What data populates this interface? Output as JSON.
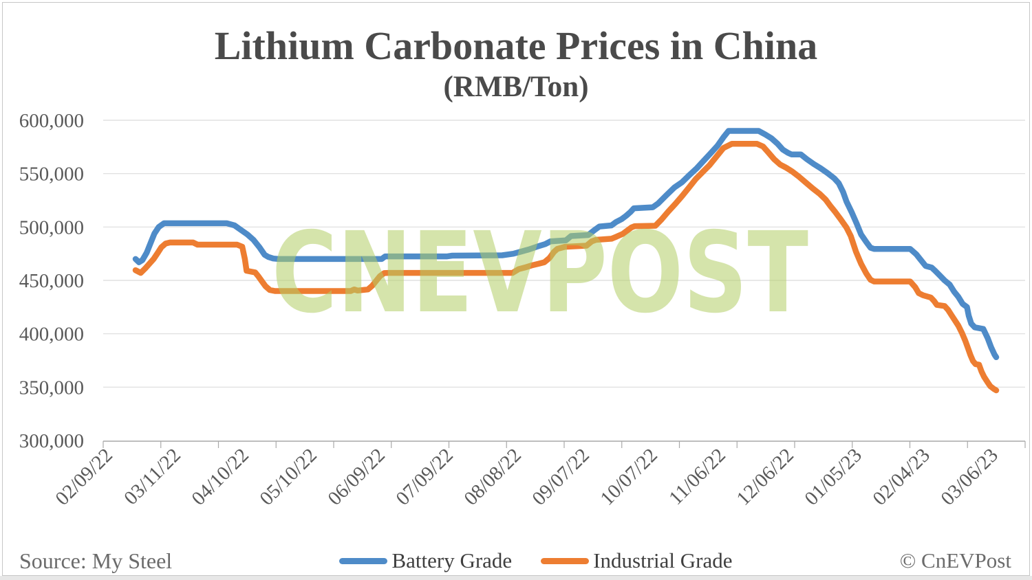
{
  "page": {
    "background": "#FFFFFF",
    "border_color": "#C6C6C6"
  },
  "header": {
    "title": "Lithium Carbonate Prices in China",
    "subtitle": "(RMB/Ton)",
    "title_color": "#4A4A4A"
  },
  "watermark": {
    "text": "CNEVPOST",
    "color": "#B2CE66",
    "opacity": 0.55
  },
  "footer": {
    "source": "Source: My Steel",
    "credit": "© CnEVPost"
  },
  "legend": {
    "items": [
      {
        "label": "Battery Grade",
        "color": "#4E8BC8"
      },
      {
        "label": "Industrial Grade",
        "color": "#ED7D31"
      }
    ]
  },
  "chart_data": {
    "type": "line",
    "title": "Lithium Carbonate Prices in China",
    "unit": "RMB/Ton",
    "grid": "horizontal",
    "legend_position": "bottom",
    "x_domain": [
      "02/09/22",
      "03/06/23"
    ],
    "x_tick_labels": [
      "02/09/22",
      "03/11/22",
      "04/10/22",
      "05/10/22",
      "06/09/22",
      "07/09/22",
      "08/08/22",
      "09/07/22",
      "10/07/22",
      "11/06/22",
      "12/06/22",
      "01/05/23",
      "02/04/23",
      "03/06/23"
    ],
    "y_axis": {
      "min": 300000,
      "max": 600000,
      "tick_step": 50000,
      "tick_labels": [
        "600,000",
        "550,000",
        "500,000",
        "450,000",
        "400,000",
        "350,000",
        "300,000"
      ]
    },
    "series": [
      {
        "name": "Battery Grade",
        "color": "#4E8BC8",
        "points": [
          [
            0,
            470000
          ],
          [
            0.004,
            467000
          ],
          [
            0.008,
            469000
          ],
          [
            0.013,
            476000
          ],
          [
            0.018,
            486000
          ],
          [
            0.022,
            494000
          ],
          [
            0.027,
            500000
          ],
          [
            0.033,
            503500
          ],
          [
            0.106,
            503500
          ],
          [
            0.115,
            501500
          ],
          [
            0.122,
            497500
          ],
          [
            0.13,
            493000
          ],
          [
            0.137,
            488000
          ],
          [
            0.144,
            481000
          ],
          [
            0.15,
            474000
          ],
          [
            0.154,
            472000
          ],
          [
            0.16,
            470500
          ],
          [
            0.166,
            470000
          ],
          [
            0.286,
            470000
          ],
          [
            0.29,
            472500
          ],
          [
            0.362,
            472500
          ],
          [
            0.368,
            473200
          ],
          [
            0.426,
            473500
          ],
          [
            0.439,
            475000
          ],
          [
            0.448,
            477000
          ],
          [
            0.457,
            479000
          ],
          [
            0.466,
            481500
          ],
          [
            0.476,
            484000
          ],
          [
            0.482,
            486500
          ],
          [
            0.5,
            487500
          ],
          [
            0.506,
            491500
          ],
          [
            0.526,
            492500
          ],
          [
            0.533,
            497000
          ],
          [
            0.539,
            500500
          ],
          [
            0.553,
            501500
          ],
          [
            0.558,
            504500
          ],
          [
            0.565,
            507500
          ],
          [
            0.57,
            510500
          ],
          [
            0.575,
            514000
          ],
          [
            0.579,
            517500
          ],
          [
            0.601,
            518500
          ],
          [
            0.607,
            522000
          ],
          [
            0.617,
            530000
          ],
          [
            0.626,
            537000
          ],
          [
            0.635,
            542000
          ],
          [
            0.644,
            549000
          ],
          [
            0.652,
            555000
          ],
          [
            0.66,
            562000
          ],
          [
            0.668,
            569000
          ],
          [
            0.676,
            576000
          ],
          [
            0.683,
            584000
          ],
          [
            0.689,
            590000
          ],
          [
            0.724,
            590000
          ],
          [
            0.731,
            587000
          ],
          [
            0.739,
            583000
          ],
          [
            0.746,
            578000
          ],
          [
            0.752,
            572500
          ],
          [
            0.758,
            569500
          ],
          [
            0.762,
            568000
          ],
          [
            0.773,
            568000
          ],
          [
            0.78,
            563500
          ],
          [
            0.788,
            559000
          ],
          [
            0.796,
            555000
          ],
          [
            0.804,
            550500
          ],
          [
            0.812,
            545500
          ],
          [
            0.817,
            541000
          ],
          [
            0.822,
            533000
          ],
          [
            0.826,
            524000
          ],
          [
            0.832,
            514000
          ],
          [
            0.838,
            503000
          ],
          [
            0.843,
            493000
          ],
          [
            0.849,
            486000
          ],
          [
            0.854,
            480500
          ],
          [
            0.858,
            479500
          ],
          [
            0.9,
            479500
          ],
          [
            0.907,
            474500
          ],
          [
            0.912,
            469500
          ],
          [
            0.918,
            463500
          ],
          [
            0.925,
            462000
          ],
          [
            0.929,
            459000
          ],
          [
            0.934,
            455000
          ],
          [
            0.94,
            450000
          ],
          [
            0.946,
            446000
          ],
          [
            0.951,
            439500
          ],
          [
            0.956,
            434500
          ],
          [
            0.961,
            428000
          ],
          [
            0.966,
            425000
          ],
          [
            0.968,
            417000
          ],
          [
            0.971,
            409500
          ],
          [
            0.975,
            406000
          ],
          [
            0.985,
            404500
          ],
          [
            0.99,
            396000
          ],
          [
            0.994,
            387500
          ],
          [
            0.998,
            380500
          ],
          [
            1,
            378000
          ]
        ]
      },
      {
        "name": "Industrial Grade",
        "color": "#ED7D31",
        "points": [
          [
            0,
            459500
          ],
          [
            0.006,
            457000
          ],
          [
            0.011,
            461000
          ],
          [
            0.016,
            465500
          ],
          [
            0.021,
            470000
          ],
          [
            0.026,
            476000
          ],
          [
            0.03,
            481000
          ],
          [
            0.035,
            484500
          ],
          [
            0.04,
            485500
          ],
          [
            0.067,
            485500
          ],
          [
            0.072,
            483500
          ],
          [
            0.118,
            483500
          ],
          [
            0.124,
            481500
          ],
          [
            0.127,
            470000
          ],
          [
            0.129,
            459000
          ],
          [
            0.139,
            457500
          ],
          [
            0.143,
            453500
          ],
          [
            0.147,
            449000
          ],
          [
            0.151,
            444500
          ],
          [
            0.156,
            441000
          ],
          [
            0.162,
            440000
          ],
          [
            0.25,
            440000
          ],
          [
            0.254,
            441500
          ],
          [
            0.258,
            440500
          ],
          [
            0.27,
            441500
          ],
          [
            0.275,
            445000
          ],
          [
            0.28,
            450000
          ],
          [
            0.284,
            454000
          ],
          [
            0.289,
            456800
          ],
          [
            0.294,
            457000
          ],
          [
            0.438,
            457000
          ],
          [
            0.445,
            460500
          ],
          [
            0.452,
            462000
          ],
          [
            0.46,
            464000
          ],
          [
            0.468,
            465500
          ],
          [
            0.475,
            467000
          ],
          [
            0.481,
            471000
          ],
          [
            0.486,
            476500
          ],
          [
            0.49,
            479500
          ],
          [
            0.499,
            481500
          ],
          [
            0.524,
            482500
          ],
          [
            0.53,
            486500
          ],
          [
            0.535,
            488000
          ],
          [
            0.553,
            489000
          ],
          [
            0.559,
            491000
          ],
          [
            0.566,
            493500
          ],
          [
            0.571,
            496500
          ],
          [
            0.576,
            499500
          ],
          [
            0.58,
            500800
          ],
          [
            0.604,
            501200
          ],
          [
            0.611,
            507000
          ],
          [
            0.619,
            514500
          ],
          [
            0.627,
            521500
          ],
          [
            0.635,
            529000
          ],
          [
            0.643,
            537000
          ],
          [
            0.651,
            545000
          ],
          [
            0.659,
            551500
          ],
          [
            0.667,
            558000
          ],
          [
            0.675,
            566000
          ],
          [
            0.683,
            574000
          ],
          [
            0.693,
            578000
          ],
          [
            0.722,
            578000
          ],
          [
            0.729,
            575500
          ],
          [
            0.735,
            570000
          ],
          [
            0.742,
            563500
          ],
          [
            0.749,
            558500
          ],
          [
            0.756,
            555500
          ],
          [
            0.763,
            552000
          ],
          [
            0.771,
            547000
          ],
          [
            0.779,
            541500
          ],
          [
            0.787,
            536000
          ],
          [
            0.795,
            531000
          ],
          [
            0.802,
            525500
          ],
          [
            0.807,
            520000
          ],
          [
            0.813,
            514000
          ],
          [
            0.819,
            507500
          ],
          [
            0.826,
            499500
          ],
          [
            0.831,
            491500
          ],
          [
            0.837,
            477000
          ],
          [
            0.843,
            465500
          ],
          [
            0.849,
            456500
          ],
          [
            0.854,
            450500
          ],
          [
            0.858,
            449000
          ],
          [
            0.9,
            449000
          ],
          [
            0.906,
            443500
          ],
          [
            0.91,
            438000
          ],
          [
            0.915,
            436000
          ],
          [
            0.924,
            434000
          ],
          [
            0.928,
            430500
          ],
          [
            0.931,
            427000
          ],
          [
            0.94,
            426000
          ],
          [
            0.944,
            422500
          ],
          [
            0.948,
            417500
          ],
          [
            0.952,
            412500
          ],
          [
            0.956,
            407500
          ],
          [
            0.96,
            401000
          ],
          [
            0.964,
            393500
          ],
          [
            0.967,
            387000
          ],
          [
            0.97,
            380000
          ],
          [
            0.973,
            374500
          ],
          [
            0.976,
            371500
          ],
          [
            0.98,
            371000
          ],
          [
            0.983,
            364500
          ],
          [
            0.986,
            359500
          ],
          [
            0.99,
            354500
          ],
          [
            0.993,
            351000
          ],
          [
            0.997,
            348500
          ],
          [
            1,
            347000
          ]
        ]
      }
    ]
  }
}
